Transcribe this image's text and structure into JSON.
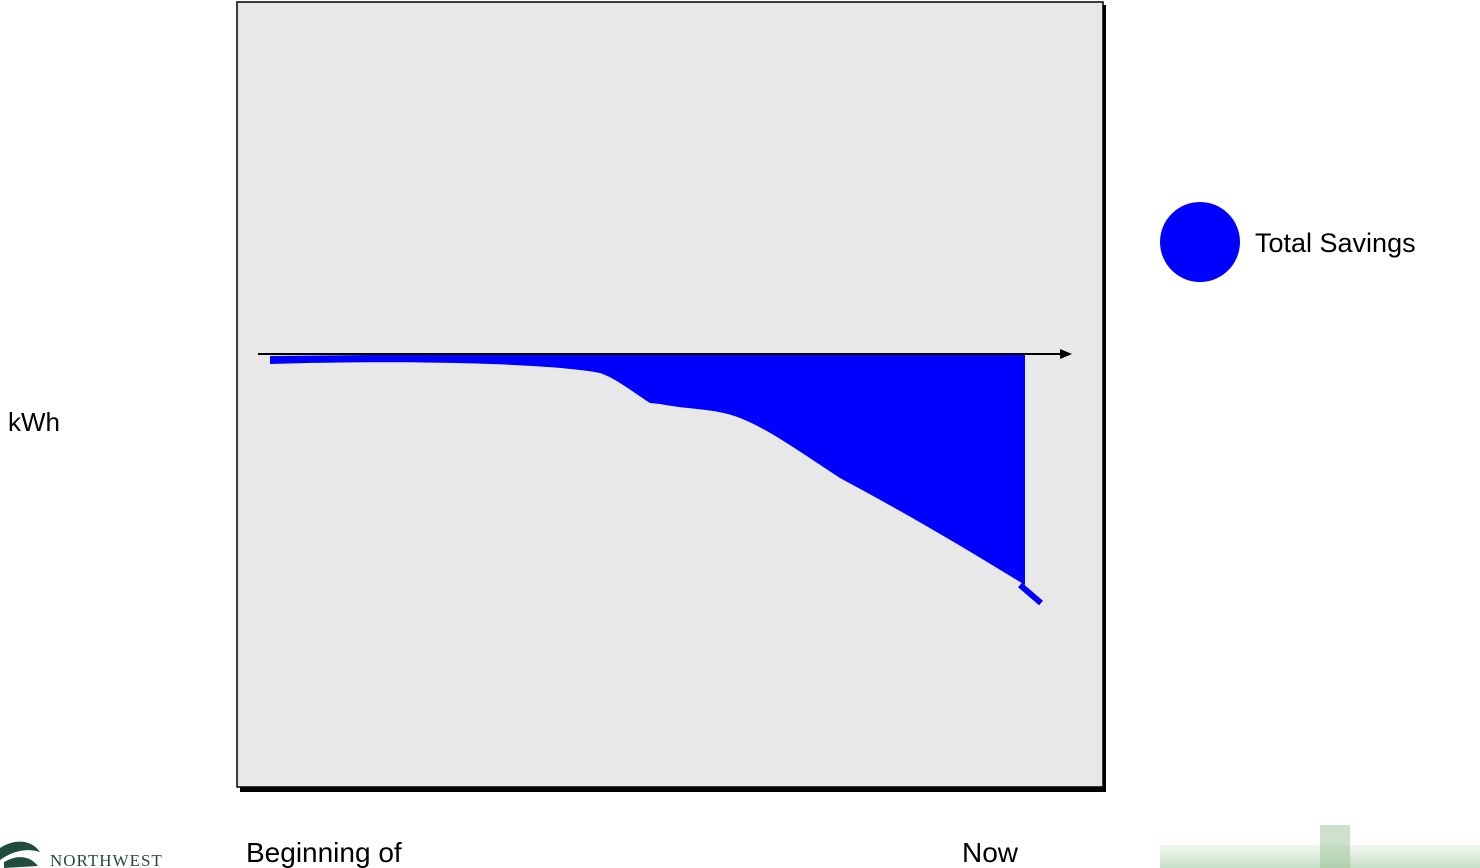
{
  "y_axis_label": "kWh",
  "legend": {
    "label": "Total Savings"
  },
  "x_axis": {
    "start_label": "Beginning of",
    "end_label": "Now"
  },
  "logo": {
    "text": "NORTHWEST"
  }
}
